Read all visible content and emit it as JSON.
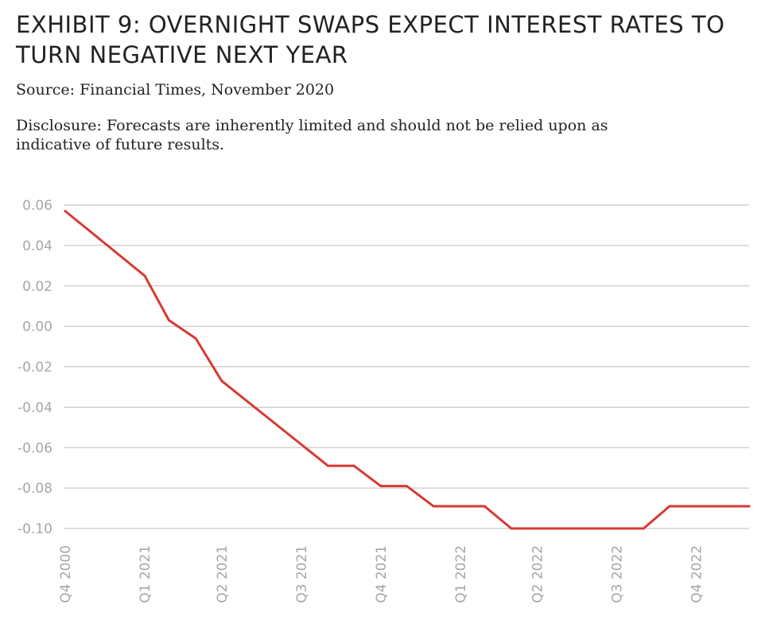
{
  "header": {
    "title": "EXHIBIT 9: OVERNIGHT SWAPS EXPECT INTEREST RATES TO TURN NEGATIVE NEXT YEAR",
    "source": "Source: Financial Times, November 2020",
    "disclosure": "Disclosure:  Forecasts are inherently limited and should not be relied upon as indicative of future results."
  },
  "chart_data": {
    "type": "line",
    "title": "",
    "xlabel": "",
    "ylabel": "",
    "ylim": [
      -0.1,
      0.06
    ],
    "grid": true,
    "y_ticks": [
      "0.06",
      "0.04",
      "0.02",
      "0.00",
      "-0.02",
      "-0.04",
      "-0.06",
      "-0.08",
      "-0.10"
    ],
    "x_tick_labels": [
      "Q4 2000",
      "Q1 2021",
      "Q2 2021",
      "Q3 2021",
      "Q4 2021",
      "Q1 2022",
      "Q2 2022",
      "Q3 2022",
      "Q4 2022"
    ],
    "series": [
      {
        "color": "#d63a33",
        "points": [
          {
            "x": "2020-11",
            "y": 0.057
          },
          {
            "x": "2021-02",
            "y": 0.025
          },
          {
            "x": "2021-03",
            "y": 0.003
          },
          {
            "x": "2021-04",
            "y": -0.006
          },
          {
            "x": "2021-05",
            "y": -0.027
          },
          {
            "x": "2021-09",
            "y": -0.069
          },
          {
            "x": "2021-10",
            "y": -0.069
          },
          {
            "x": "2021-11",
            "y": -0.079
          },
          {
            "x": "2021-12",
            "y": -0.079
          },
          {
            "x": "2022-01",
            "y": -0.089
          },
          {
            "x": "2022-03",
            "y": -0.089
          },
          {
            "x": "2022-04",
            "y": -0.1
          },
          {
            "x": "2022-09",
            "y": -0.1
          },
          {
            "x": "2022-10",
            "y": -0.089
          },
          {
            "x": "2023-01",
            "y": -0.089
          }
        ]
      }
    ]
  }
}
